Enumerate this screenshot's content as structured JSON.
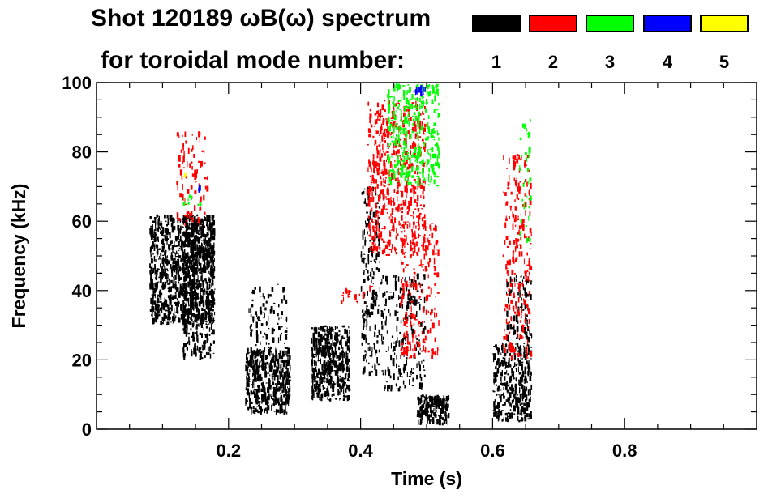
{
  "chart_data": {
    "type": "heatmap",
    "title_line1": "Shot 120189 ωB(ω) spectrum",
    "title_line2": "for toroidal mode number:",
    "xlabel": "Time (s)",
    "ylabel": "Frequency (kHz)",
    "xlim": [
      0.0,
      1.0
    ],
    "ylim": [
      0,
      100
    ],
    "x_ticks": [
      0.2,
      0.4,
      0.6,
      0.8
    ],
    "x_tick_labels": [
      "0.2",
      "0.4",
      "0.6",
      "0.8"
    ],
    "y_ticks": [
      0,
      20,
      40,
      60,
      80,
      100
    ],
    "y_tick_labels": [
      "0",
      "20",
      "40",
      "60",
      "80",
      "100"
    ],
    "legend": [
      {
        "label": "1",
        "color": "#000000"
      },
      {
        "label": "2",
        "color": "#ff0000"
      },
      {
        "label": "3",
        "color": "#00ff00"
      },
      {
        "label": "4",
        "color": "#0000ff"
      },
      {
        "label": "5",
        "color": "#ffff00"
      }
    ],
    "regions": [
      {
        "mode": 1,
        "t": [
          0.08,
          0.18
        ],
        "f": [
          30,
          62
        ],
        "density": 0.55
      },
      {
        "mode": 1,
        "t": [
          0.13,
          0.18
        ],
        "f": [
          20,
          60
        ],
        "density": 0.35
      },
      {
        "mode": 1,
        "t": [
          0.225,
          0.295
        ],
        "f": [
          4,
          24
        ],
        "density": 0.6
      },
      {
        "mode": 1,
        "t": [
          0.23,
          0.29
        ],
        "f": [
          24,
          42
        ],
        "density": 0.15
      },
      {
        "mode": 1,
        "t": [
          0.325,
          0.385
        ],
        "f": [
          8,
          30
        ],
        "density": 0.6
      },
      {
        "mode": 1,
        "t": [
          0.4,
          0.43
        ],
        "f": [
          15,
          70
        ],
        "density": 0.2
      },
      {
        "mode": 1,
        "t": [
          0.43,
          0.5
        ],
        "f": [
          10,
          45
        ],
        "density": 0.15
      },
      {
        "mode": 1,
        "t": [
          0.485,
          0.535
        ],
        "f": [
          1,
          10
        ],
        "density": 0.65
      },
      {
        "mode": 1,
        "t": [
          0.6,
          0.66
        ],
        "f": [
          2,
          25
        ],
        "density": 0.45
      },
      {
        "mode": 1,
        "t": [
          0.62,
          0.66
        ],
        "f": [
          25,
          45
        ],
        "density": 0.2
      },
      {
        "mode": 2,
        "t": [
          0.41,
          0.5
        ],
        "f": [
          50,
          95
        ],
        "density": 0.25
      },
      {
        "mode": 2,
        "t": [
          0.46,
          0.52
        ],
        "f": [
          20,
          60
        ],
        "density": 0.15
      },
      {
        "mode": 2,
        "t": [
          0.37,
          0.42
        ],
        "f": [
          35,
          42
        ],
        "density": 0.1
      },
      {
        "mode": 2,
        "t": [
          0.615,
          0.66
        ],
        "f": [
          20,
          80
        ],
        "density": 0.15
      },
      {
        "mode": 2,
        "t": [
          0.12,
          0.17
        ],
        "f": [
          58,
          86
        ],
        "density": 0.1
      },
      {
        "mode": 3,
        "t": [
          0.44,
          0.52
        ],
        "f": [
          70,
          100
        ],
        "density": 0.25
      },
      {
        "mode": 3,
        "t": [
          0.13,
          0.16
        ],
        "f": [
          64,
          68
        ],
        "density": 0.15
      },
      {
        "mode": 3,
        "t": [
          0.64,
          0.66
        ],
        "f": [
          50,
          90
        ],
        "density": 0.08
      },
      {
        "mode": 4,
        "t": [
          0.48,
          0.5
        ],
        "f": [
          96,
          100
        ],
        "density": 0.3
      },
      {
        "mode": 4,
        "t": [
          0.15,
          0.16
        ],
        "f": [
          68,
          72
        ],
        "density": 0.2
      },
      {
        "mode": 5,
        "t": [
          0.13,
          0.14
        ],
        "f": [
          72,
          74
        ],
        "density": 0.2
      }
    ]
  }
}
